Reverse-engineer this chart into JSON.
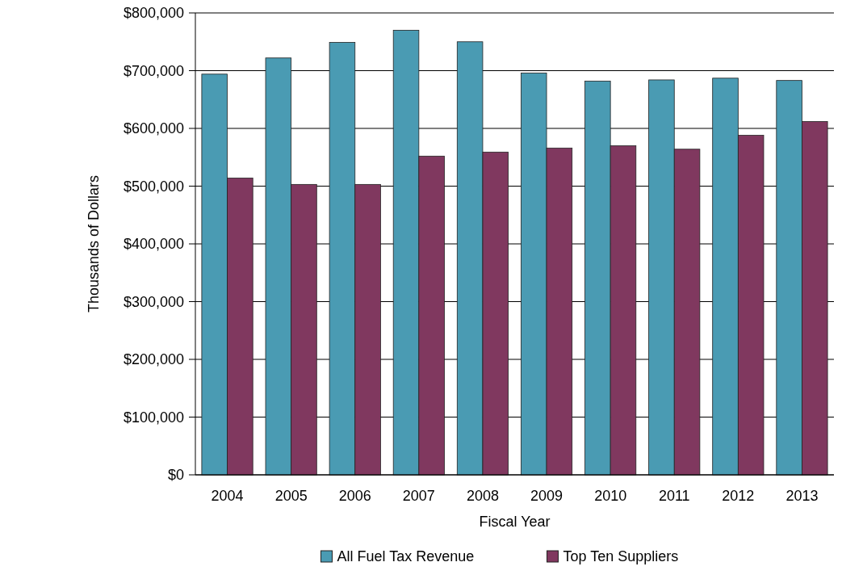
{
  "chart_data": {
    "type": "bar",
    "xlabel": "Fiscal Year",
    "ylabel": "Thousands of Dollars",
    "categories": [
      "2004",
      "2005",
      "2006",
      "2007",
      "2008",
      "2009",
      "2010",
      "2011",
      "2012",
      "2013"
    ],
    "series": [
      {
        "name": "All Fuel Tax Revenue",
        "color": "#4a9bb3",
        "values": [
          694000,
          722000,
          749000,
          770000,
          750000,
          696000,
          682000,
          684000,
          687000,
          683000
        ]
      },
      {
        "name": "Top Ten Suppliers",
        "color": "#80385f",
        "values": [
          514000,
          503000,
          503000,
          552000,
          559000,
          566000,
          570000,
          564000,
          588000,
          612000
        ]
      }
    ],
    "ylim": [
      0,
      800000
    ],
    "yticks": [
      {
        "value": 0,
        "label": "$0"
      },
      {
        "value": 100000,
        "label": "$100,000"
      },
      {
        "value": 200000,
        "label": "$200,000"
      },
      {
        "value": 300000,
        "label": "$300,000"
      },
      {
        "value": 400000,
        "label": "$400,000"
      },
      {
        "value": 500000,
        "label": "$500,000"
      },
      {
        "value": 600000,
        "label": "$600,000"
      },
      {
        "value": 700000,
        "label": "$700,000"
      },
      {
        "value": 800000,
        "label": "$800,000"
      }
    ],
    "grid": "y",
    "legend": "bottom"
  }
}
